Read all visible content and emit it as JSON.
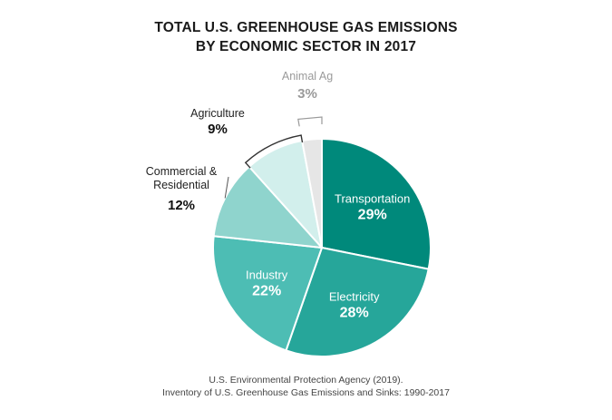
{
  "title_lines": [
    "TOTAL U.S. GREENHOUSE GAS EMISSIONS",
    "BY ECONOMIC SECTOR IN 2017"
  ],
  "source_lines": [
    "U.S. Environmental Protection Agency (2019).",
    "Inventory of U.S. Greenhouse Gas Emissions and Sinks: 1990-2017"
  ],
  "chart_data": {
    "type": "pie",
    "title": "TOTAL U.S. GREENHOUSE GAS EMISSIONS BY ECONOMIC SECTOR IN 2017",
    "slices": [
      {
        "label": "Transportation",
        "value": 29,
        "display": "29%",
        "color": "#00897b"
      },
      {
        "label": "Electricity",
        "value": 28,
        "display": "28%",
        "color": "#26a69a"
      },
      {
        "label": "Industry",
        "value": 22,
        "display": "22%",
        "color": "#4dbdb4"
      },
      {
        "label": "Commercial & Residential",
        "value": 12,
        "display": "12%",
        "color": "#8fd4cd"
      },
      {
        "label": "Agriculture",
        "value": 9,
        "display": "9%",
        "color": "#d2efec"
      },
      {
        "label": "Animal Ag",
        "value": 3,
        "display": "3%",
        "color": "#e6e6e6"
      }
    ],
    "legend": "none"
  }
}
